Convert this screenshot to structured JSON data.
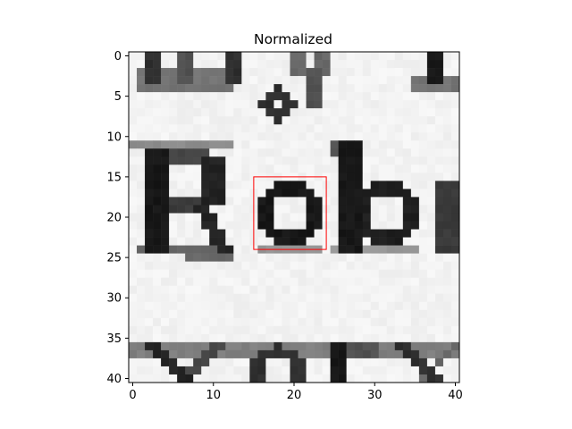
{
  "chart_data": {
    "type": "heatmap",
    "title": "Normalized",
    "xlabel": "",
    "ylabel": "",
    "image_size": [
      41,
      41
    ],
    "xlim": [
      -0.5,
      40.5
    ],
    "ylim": [
      40.5,
      -0.5
    ],
    "colormap": "gray",
    "x_ticks": [
      0,
      10,
      20,
      30,
      40
    ],
    "x_tick_labels": [
      "0",
      "10",
      "20",
      "30",
      "40"
    ],
    "y_ticks": [
      0,
      5,
      10,
      15,
      20,
      25,
      30,
      35,
      40
    ],
    "y_tick_labels": [
      "0",
      "5",
      "10",
      "15",
      "20",
      "25",
      "30",
      "35",
      "40"
    ],
    "content_description": "grayscale crop of printed text showing 'Rob' with partial letters above and below",
    "highlight_box": {
      "x0": 15,
      "y0": 15,
      "x1": 24,
      "y1": 24,
      "color": "#ff0000"
    }
  }
}
